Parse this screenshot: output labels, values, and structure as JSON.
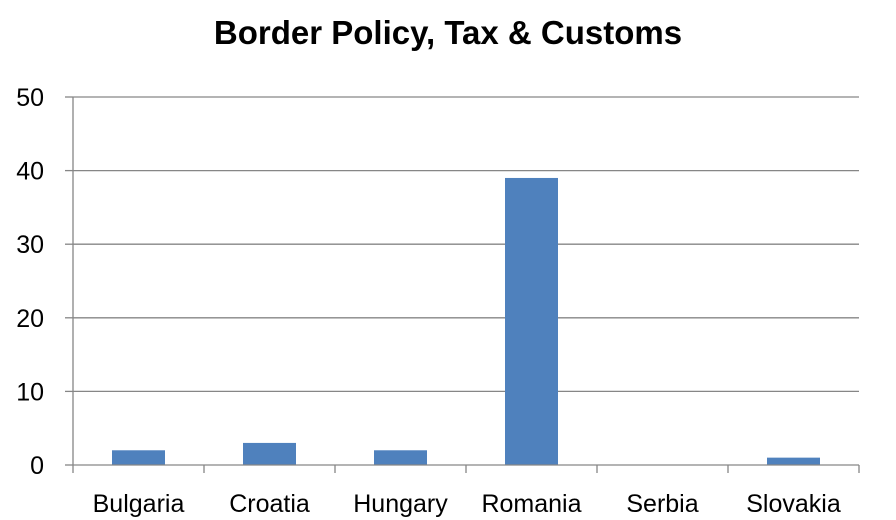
{
  "chart_data": {
    "type": "bar",
    "title": "Border Policy, Tax & Customs",
    "xlabel": "",
    "ylabel": "",
    "categories": [
      "Bulgaria",
      "Croatia",
      "Hungary",
      "Romania",
      "Serbia",
      "Slovakia"
    ],
    "values": [
      2,
      3,
      2,
      39,
      0,
      1
    ],
    "ylim": [
      0,
      50
    ],
    "yticks": [
      "0",
      "10",
      "20",
      "30",
      "40",
      "50"
    ],
    "grid": true,
    "legend": "none",
    "bar_color": "#4F81BD",
    "grid_color": "#868686"
  }
}
